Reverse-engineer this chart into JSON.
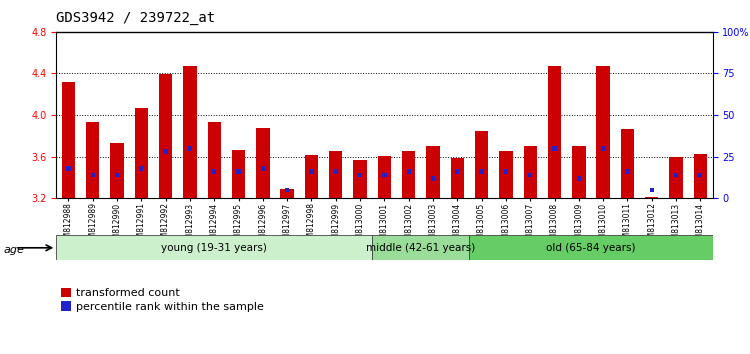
{
  "title": "GDS3942 / 239722_at",
  "samples": [
    "GSM812988",
    "GSM812989",
    "GSM812990",
    "GSM812991",
    "GSM812992",
    "GSM812993",
    "GSM812994",
    "GSM812995",
    "GSM812996",
    "GSM812997",
    "GSM812998",
    "GSM812999",
    "GSM813000",
    "GSM813001",
    "GSM813002",
    "GSM813003",
    "GSM813004",
    "GSM813005",
    "GSM813006",
    "GSM813007",
    "GSM813008",
    "GSM813009",
    "GSM813010",
    "GSM813011",
    "GSM813012",
    "GSM813013",
    "GSM813014"
  ],
  "red_values": [
    4.32,
    3.93,
    3.73,
    4.07,
    4.39,
    4.47,
    3.93,
    3.66,
    3.88,
    3.29,
    3.62,
    3.65,
    3.57,
    3.61,
    3.65,
    3.7,
    3.59,
    3.85,
    3.65,
    3.7,
    4.47,
    3.7,
    4.47,
    3.87,
    3.21,
    3.6,
    3.63
  ],
  "blue_values": [
    18,
    14,
    14,
    18,
    28,
    30,
    16,
    16,
    18,
    5,
    16,
    16,
    14,
    14,
    16,
    12,
    16,
    16,
    16,
    14,
    30,
    12,
    30,
    16,
    5,
    14,
    14
  ],
  "groups": [
    {
      "label": "young (19-31 years)",
      "start": 0,
      "end": 13,
      "color": "#ccf0cc"
    },
    {
      "label": "middle (42-61 years)",
      "start": 13,
      "end": 17,
      "color": "#99dd99"
    },
    {
      "label": "old (65-84 years)",
      "start": 17,
      "end": 27,
      "color": "#66cc66"
    }
  ],
  "ylim_left": [
    3.2,
    4.8
  ],
  "ylim_right": [
    0,
    100
  ],
  "yticks_left": [
    3.2,
    3.6,
    4.0,
    4.4,
    4.8
  ],
  "yticks_right": [
    0,
    25,
    50,
    75,
    100
  ],
  "ytick_labels_right": [
    "0",
    "25",
    "50",
    "75",
    "100%"
  ],
  "bar_color_red": "#cc0000",
  "bar_color_blue": "#2222cc",
  "bar_width": 0.55,
  "baseline": 3.2,
  "legend_red": "transformed count",
  "legend_blue": "percentile rank within the sample",
  "tick_fontsize": 7,
  "age_label": "age"
}
